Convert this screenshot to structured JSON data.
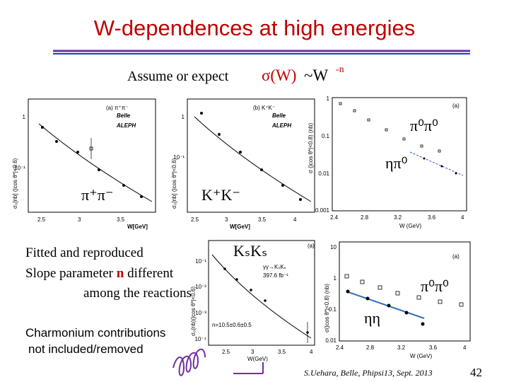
{
  "slide": {
    "title": "W-dependences at high energies",
    "subtitle": {
      "lead": "Assume or expect",
      "formula": "σ(W)",
      "power": "~W",
      "exponent": "-n"
    },
    "plots": [
      {
        "legend": [
          "(a) π⁺π⁻",
          "Belle",
          "ALEPH"
        ],
        "x_title": "W[GeV]",
        "y_title": "σ₀[nb] (|cos θ*|<0.6)",
        "xticks": [
          "2.5",
          "3",
          "3.5"
        ],
        "yticks": [
          "1",
          "10⁻¹"
        ]
      },
      {
        "legend": [
          "(b) K⁺K⁻",
          "Belle",
          "ALEPH"
        ],
        "x_title": "W[GeV]",
        "y_title": "σ₀[nb] (|cos θ*|<0.6)",
        "xticks": [
          "2.5",
          "3",
          "3.5",
          "4"
        ],
        "yticks": [
          "1",
          "10⁻¹"
        ]
      },
      {
        "legend": [
          "(a)"
        ],
        "x_title": "W (GeV)",
        "y_title": "σ (|cos θ*|<0.8) (nb)",
        "xticks": [
          "2.4",
          "2.8",
          "3.2",
          "3.6",
          "4"
        ],
        "yticks": [
          "1",
          "0.1",
          "0.01",
          "0.001"
        ]
      },
      {
        "legend": [
          "(a)",
          "γγ→KₛKₛ",
          "397.6 fb⁻¹"
        ],
        "note": "n=10.5±0.6±0.5",
        "x_title": "W(GeV)",
        "y_title": "σ₀(nb)(|cos θ*|<0.6)",
        "xticks": [
          "2.5",
          "3",
          "3.5",
          "4"
        ],
        "yticks": [
          "10⁻¹",
          "10⁻²",
          "10⁻³",
          "10⁻⁴"
        ]
      },
      {
        "legend": [
          "(a)"
        ],
        "x_title": "W (GeV)",
        "y_title": "σ(|cos θ*|<0.8) (nb)",
        "xticks": [
          "2.4",
          "2.8",
          "3.2",
          "3.6",
          "4"
        ],
        "yticks": [
          "10",
          "1",
          "0.1",
          "0.01"
        ]
      }
    ],
    "reaction_labels": [
      "π⁺π⁻",
      "K⁺K⁻",
      "π⁰π⁰",
      "ηπ⁰",
      "KₛKₛ",
      "π⁰π⁰",
      "ηη"
    ],
    "notes": {
      "fit": [
        "Fitted and reproduced",
        "Slope parameter ",
        "n",
        " different",
        "among the reactions"
      ],
      "charmonium": [
        "Charmonium contributions",
        "not included/removed"
      ]
    },
    "footer": {
      "credit": "S.Uehara, Belle, Phipsi13, Sept. 2013",
      "page": "42"
    }
  }
}
